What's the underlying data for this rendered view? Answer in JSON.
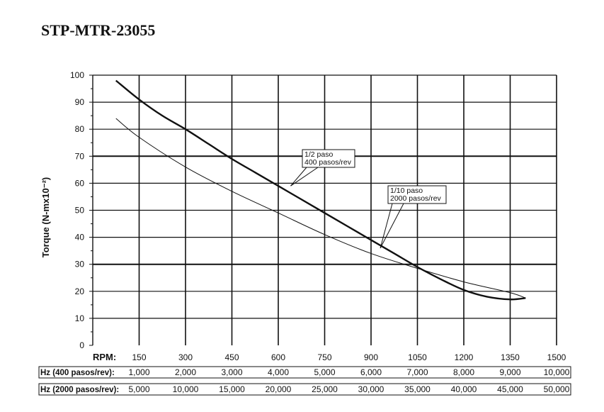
{
  "title": "STP-MTR-23055",
  "chart_data": {
    "type": "line",
    "ylabel": "Torque (N-mx10⁻²)",
    "ylim": [
      0,
      100
    ],
    "y_ticks": [
      0,
      10,
      20,
      30,
      40,
      50,
      60,
      70,
      80,
      90,
      100
    ],
    "xlim": [
      0,
      1500
    ],
    "rpm_label": "RPM:",
    "x_ticks": [
      150,
      300,
      450,
      600,
      750,
      900,
      1050,
      1200,
      1350,
      1500
    ],
    "grid": true,
    "series": [
      {
        "name": "1/2 paso\n400 pasos/rev",
        "x": [
          75,
          150,
          225,
          300,
          375,
          450,
          525,
          600,
          675,
          750,
          825,
          900,
          975,
          1050,
          1125,
          1200,
          1275,
          1350,
          1400
        ],
        "values": [
          98,
          91,
          85,
          80,
          74.5,
          69,
          64,
          59,
          54,
          49,
          44,
          39,
          34,
          29,
          24.5,
          20.5,
          18,
          17,
          17.5
        ]
      },
      {
        "name": "1/10 paso\n2000 pasos/rev",
        "x": [
          75,
          150,
          300,
          450,
          600,
          750,
          900,
          1050,
          1200,
          1350,
          1400
        ],
        "values": [
          84,
          77,
          66,
          57,
          49,
          41,
          34,
          28.5,
          23.5,
          19.5,
          17.5
        ]
      }
    ],
    "annotations": [
      {
        "lines": [
          "1/2 paso",
          "400 pasos/rev"
        ],
        "series": 0,
        "point": [
          640,
          59
        ]
      },
      {
        "lines": [
          "1/10 paso",
          "2000 pasos/rev"
        ],
        "series": 1,
        "point": [
          930,
          36
        ]
      }
    ],
    "freq_rows": [
      {
        "label": "Hz (400 pasos/rev):",
        "values": [
          "1,000",
          "2,000",
          "3,000",
          "4,000",
          "5,000",
          "6,000",
          "7,000",
          "8,000",
          "9,000",
          "10,000"
        ]
      },
      {
        "label": "Hz (2000 pasos/rev):",
        "values": [
          "5,000",
          "10,000",
          "15,000",
          "20,000",
          "25,000",
          "30,000",
          "35,000",
          "40,000",
          "45,000",
          "50,000"
        ]
      }
    ]
  }
}
